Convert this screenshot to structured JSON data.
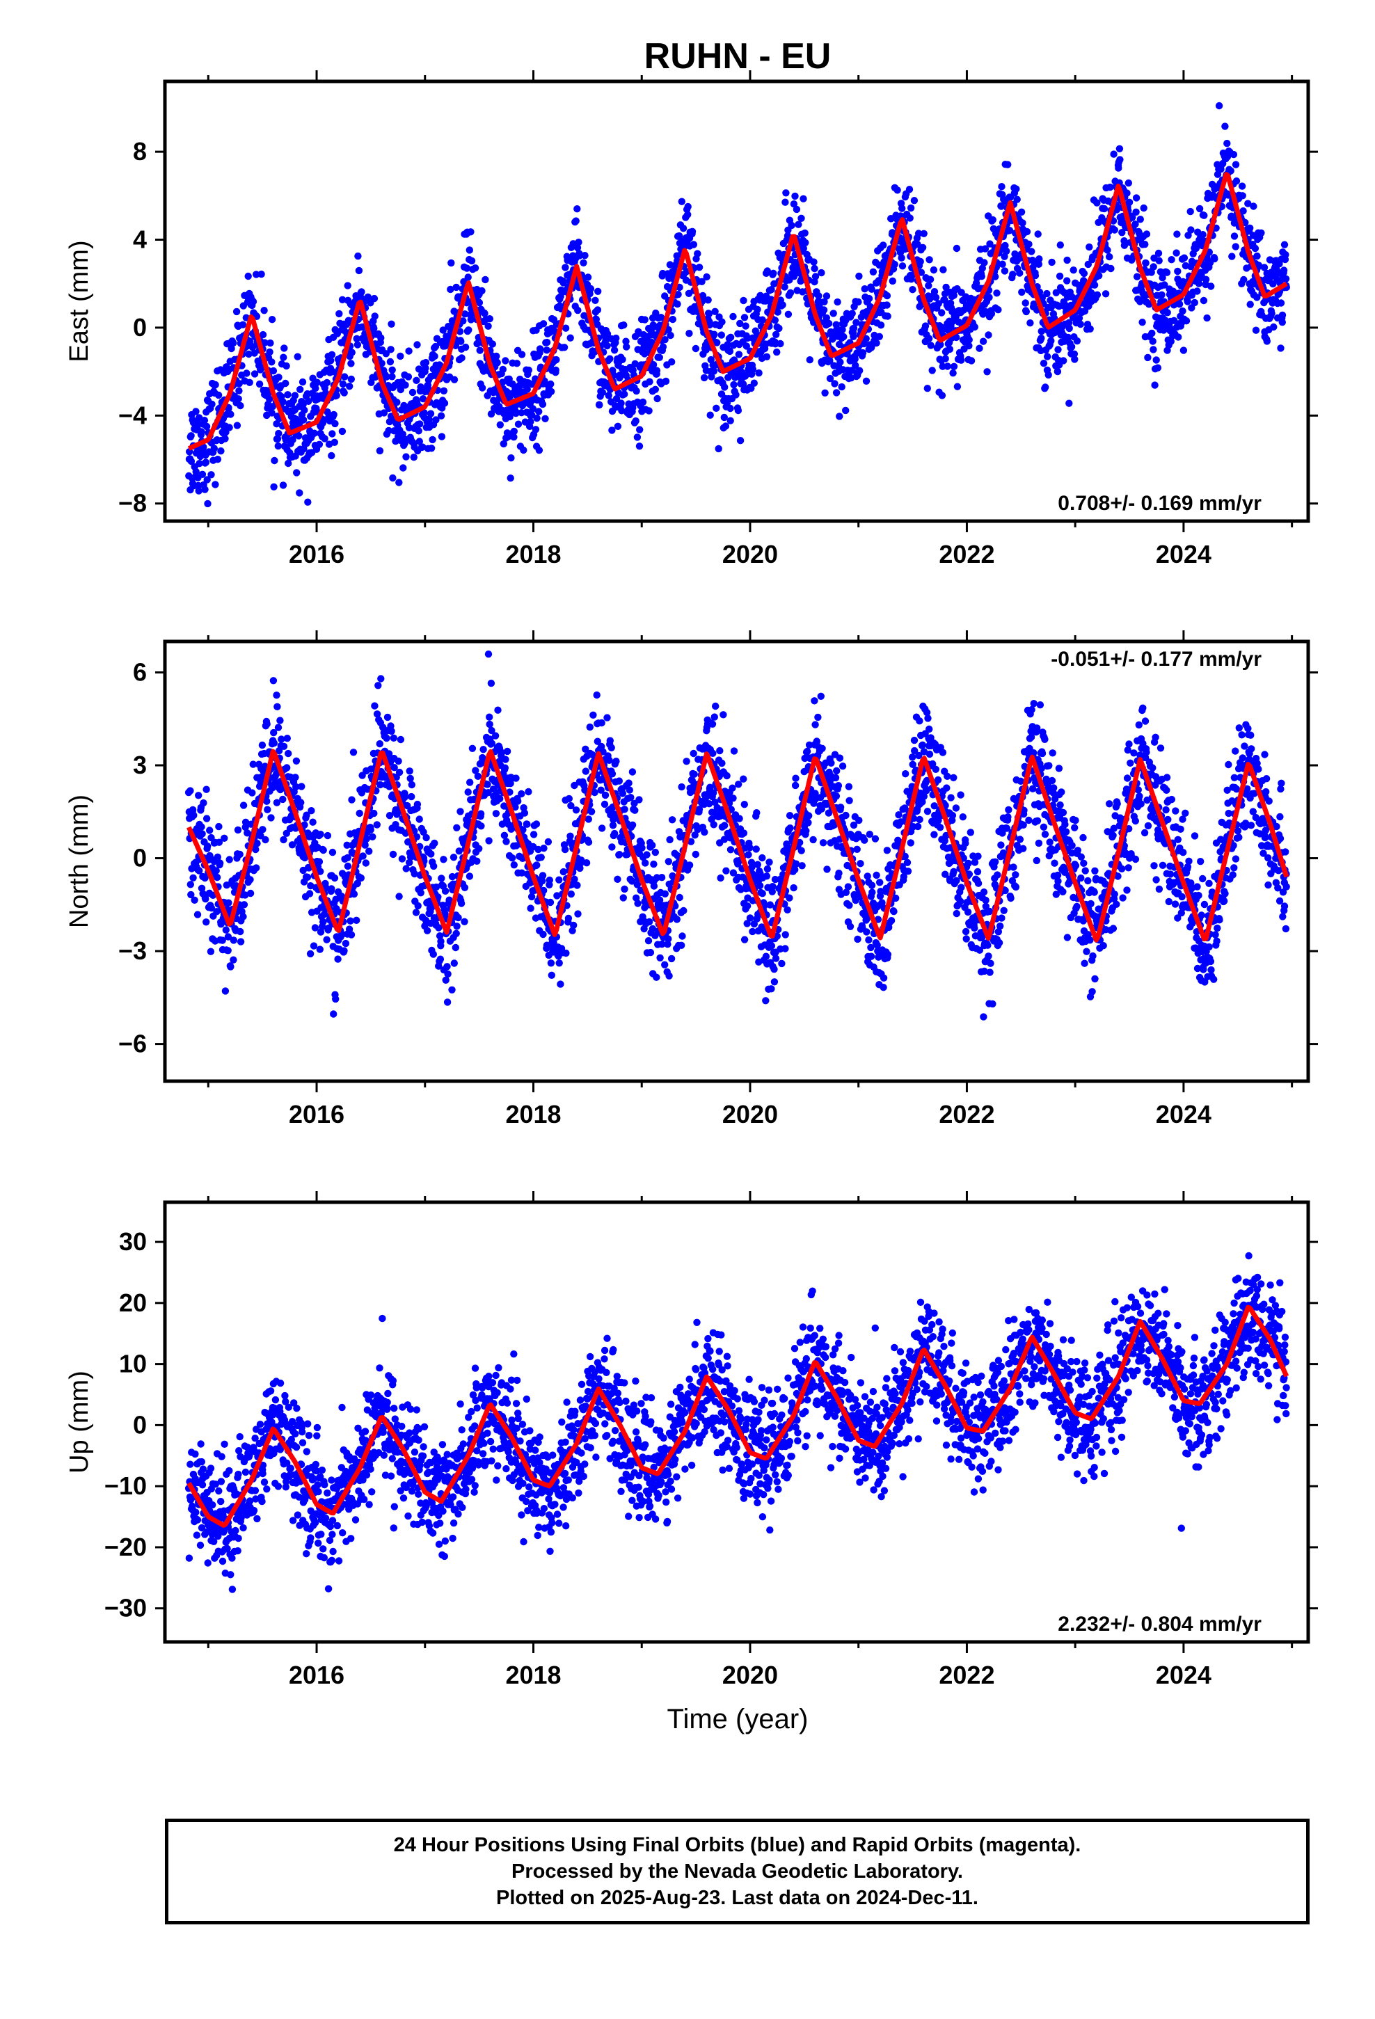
{
  "title": "RUHN - EU",
  "xlabel": "Time (year)",
  "colors": {
    "dots": "#0000ff",
    "fit": "#ff0000",
    "frame": "#000000"
  },
  "footer": {
    "line1": "24 Hour Positions Using Final Orbits (blue) and Rapid Orbits (magenta).",
    "line2": "Processed by the Nevada Geodetic Laboratory.",
    "line3": "Plotted on 2025-Aug-23. Last data on 2024-Dec-11."
  },
  "chart_data": [
    {
      "type": "scatter",
      "ylabel": "East (mm)",
      "rate_label": "0.708+/- 0.169 mm/yr",
      "xlim": [
        2014.6,
        2025.15
      ],
      "ylim": [
        -8.8,
        11.2
      ],
      "xticks": [
        2016,
        2018,
        2020,
        2022,
        2024
      ],
      "yticks": [
        -8,
        -4,
        0,
        4,
        8
      ],
      "data_range": [
        2014.82,
        2024.95
      ],
      "series": [
        {
          "kind": "daily positions",
          "color": "#0000ff"
        },
        {
          "kind": "model fit",
          "color": "#ff0000",
          "x": [
            2014.82,
            2015.0,
            2015.2,
            2015.4,
            2015.6,
            2015.75,
            2016.0,
            2016.2,
            2016.4,
            2016.6,
            2016.75,
            2017.0,
            2017.2,
            2017.4,
            2017.6,
            2017.75,
            2018.0,
            2018.2,
            2018.4,
            2018.6,
            2018.75,
            2019.0,
            2019.2,
            2019.4,
            2019.6,
            2019.75,
            2020.0,
            2020.2,
            2020.4,
            2020.6,
            2020.75,
            2021.0,
            2021.2,
            2021.4,
            2021.6,
            2021.75,
            2022.0,
            2022.2,
            2022.4,
            2022.6,
            2022.75,
            2023.0,
            2023.2,
            2023.4,
            2023.6,
            2023.75,
            2024.0,
            2024.2,
            2024.4,
            2024.6,
            2024.75,
            2024.95
          ],
          "y": [
            -5.5,
            -5.1,
            -3.0,
            0.6,
            -3.0,
            -4.8,
            -4.3,
            -2.3,
            1.3,
            -2.5,
            -4.2,
            -3.6,
            -1.6,
            2.1,
            -1.7,
            -3.5,
            -3.0,
            -0.9,
            2.8,
            -1.0,
            -2.8,
            -2.2,
            -0.1,
            3.6,
            -0.2,
            -2.0,
            -1.4,
            0.6,
            4.3,
            0.6,
            -1.3,
            -0.7,
            1.4,
            5.0,
            1.3,
            -0.6,
            0.1,
            2.1,
            5.7,
            2.0,
            0.0,
            0.8,
            2.8,
            6.5,
            2.7,
            0.8,
            1.5,
            3.5,
            7.1,
            3.4,
            1.4,
            2.0
          ]
        }
      ]
    },
    {
      "type": "scatter",
      "ylabel": "North (mm)",
      "rate_label": "-0.051+/- 0.177 mm/yr",
      "xlim": [
        2014.6,
        2025.15
      ],
      "ylim": [
        -7.2,
        7.0
      ],
      "xticks": [
        2016,
        2018,
        2020,
        2022,
        2024
      ],
      "yticks": [
        -6,
        -3,
        0,
        3,
        6
      ],
      "data_range": [
        2014.82,
        2024.95
      ],
      "series": [
        {
          "kind": "daily positions",
          "color": "#0000ff"
        },
        {
          "kind": "model fit",
          "color": "#ff0000",
          "x": [
            2014.82,
            2015.0,
            2015.2,
            2015.4,
            2015.6,
            2015.8,
            2016.0,
            2016.2,
            2016.4,
            2016.6,
            2016.8,
            2017.0,
            2017.2,
            2017.4,
            2017.6,
            2017.8,
            2018.0,
            2018.2,
            2018.4,
            2018.6,
            2018.8,
            2019.0,
            2019.2,
            2019.4,
            2019.6,
            2019.8,
            2020.0,
            2020.2,
            2020.4,
            2020.6,
            2020.8,
            2021.0,
            2021.2,
            2021.4,
            2021.6,
            2021.8,
            2022.0,
            2022.2,
            2022.4,
            2022.6,
            2022.8,
            2023.0,
            2023.2,
            2023.4,
            2023.6,
            2023.8,
            2024.0,
            2024.2,
            2024.4,
            2024.6,
            2024.8,
            2024.95
          ],
          "y": [
            1.0,
            -0.4,
            -2.2,
            0.5,
            3.5,
            1.5,
            -0.6,
            -2.4,
            0.5,
            3.5,
            1.5,
            -0.6,
            -2.4,
            0.5,
            3.5,
            1.5,
            -0.6,
            -2.5,
            0.4,
            3.4,
            1.4,
            -0.7,
            -2.5,
            0.4,
            3.4,
            1.4,
            -0.7,
            -2.6,
            0.3,
            3.3,
            1.3,
            -0.7,
            -2.6,
            0.3,
            3.3,
            1.3,
            -0.8,
            -2.6,
            0.3,
            3.3,
            1.2,
            -0.8,
            -2.7,
            0.2,
            3.2,
            1.2,
            -0.8,
            -2.7,
            0.2,
            3.1,
            1.1,
            -0.6
          ]
        }
      ]
    },
    {
      "type": "scatter",
      "ylabel": "Up (mm)",
      "rate_label": "2.232+/- 0.804 mm/yr",
      "xlim": [
        2014.6,
        2025.15
      ],
      "ylim": [
        -35.5,
        36.5
      ],
      "xticks": [
        2016,
        2018,
        2020,
        2022,
        2024
      ],
      "yticks": [
        -30,
        -20,
        -10,
        0,
        10,
        20,
        30
      ],
      "data_range": [
        2014.82,
        2024.95
      ],
      "series": [
        {
          "kind": "daily positions",
          "color": "#0000ff"
        },
        {
          "kind": "model fit",
          "color": "#ff0000",
          "x": [
            2014.82,
            2015.0,
            2015.15,
            2015.4,
            2015.6,
            2015.8,
            2016.0,
            2016.15,
            2016.4,
            2016.6,
            2016.8,
            2017.0,
            2017.15,
            2017.4,
            2017.6,
            2017.8,
            2018.0,
            2018.15,
            2018.4,
            2018.6,
            2018.8,
            2019.0,
            2019.15,
            2019.4,
            2019.6,
            2019.8,
            2020.0,
            2020.15,
            2020.4,
            2020.6,
            2020.8,
            2021.0,
            2021.15,
            2021.4,
            2021.6,
            2021.8,
            2022.0,
            2022.15,
            2022.4,
            2022.6,
            2022.8,
            2023.0,
            2023.15,
            2023.4,
            2023.6,
            2023.8,
            2024.0,
            2024.15,
            2024.4,
            2024.6,
            2024.8,
            2024.95
          ],
          "y": [
            -9.5,
            -15.0,
            -16.5,
            -9.0,
            -0.5,
            -6.0,
            -13.0,
            -14.5,
            -7.0,
            1.5,
            -4.0,
            -11.0,
            -12.5,
            -5.0,
            3.5,
            -2.0,
            -9.0,
            -10.0,
            -3.0,
            6.0,
            0.0,
            -7.0,
            -8.0,
            -1.0,
            8.0,
            2.5,
            -4.5,
            -5.5,
            1.5,
            10.5,
            4.5,
            -2.5,
            -3.5,
            3.5,
            12.5,
            6.5,
            -0.5,
            -1.0,
            6.0,
            14.5,
            8.5,
            2.0,
            1.0,
            8.0,
            17.0,
            11.0,
            4.0,
            3.5,
            10.0,
            19.5,
            14.0,
            8.0
          ]
        }
      ]
    }
  ]
}
